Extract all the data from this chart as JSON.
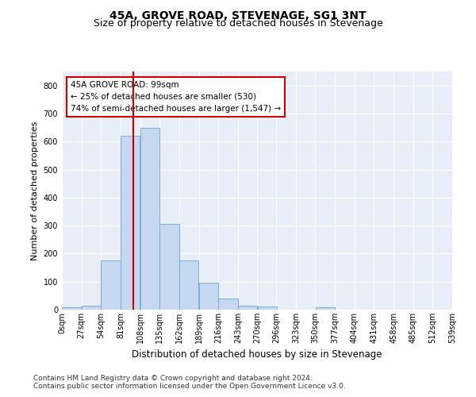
{
  "title": "45A, GROVE ROAD, STEVENAGE, SG1 3NT",
  "subtitle": "Size of property relative to detached houses in Stevenage",
  "xlabel": "Distribution of detached houses by size in Stevenage",
  "ylabel": "Number of detached properties",
  "bar_values": [
    8,
    13,
    175,
    620,
    650,
    305,
    175,
    97,
    40,
    15,
    10,
    0,
    0,
    8,
    0,
    0,
    0,
    0,
    0,
    0
  ],
  "bin_edges": [
    0,
    27,
    54,
    81,
    108,
    135,
    162,
    189,
    216,
    243,
    270,
    296,
    323,
    350,
    377,
    404,
    431,
    458,
    485,
    512,
    539
  ],
  "tick_labels": [
    "0sqm",
    "27sqm",
    "54sqm",
    "81sqm",
    "108sqm",
    "135sqm",
    "162sqm",
    "189sqm",
    "216sqm",
    "243sqm",
    "270sqm",
    "296sqm",
    "323sqm",
    "350sqm",
    "377sqm",
    "404sqm",
    "431sqm",
    "458sqm",
    "485sqm",
    "512sqm",
    "539sqm"
  ],
  "bar_color": "#c5d8ef",
  "bar_edge_color": "#7bafd4",
  "vline_x": 99,
  "vline_color": "#cc0000",
  "annotation_text": "45A GROVE ROAD: 99sqm\n← 25% of detached houses are smaller (530)\n74% of semi-detached houses are larger (1,547) →",
  "annotation_box_color": "#ffffff",
  "annotation_box_edge": "#cc0000",
  "ylim": [
    0,
    850
  ],
  "yticks": [
    0,
    100,
    200,
    300,
    400,
    500,
    600,
    700,
    800
  ],
  "xlim": [
    0,
    539
  ],
  "background_color": "#e8eef7",
  "plot_bg_color": "#e8eef7",
  "footer_line1": "Contains HM Land Registry data © Crown copyright and database right 2024.",
  "footer_line2": "Contains public sector information licensed under the Open Government Licence v3.0.",
  "title_fontsize": 10,
  "subtitle_fontsize": 9,
  "xlabel_fontsize": 8.5,
  "ylabel_fontsize": 8,
  "tick_fontsize": 7,
  "annot_fontsize": 7.5,
  "footer_fontsize": 6.5
}
